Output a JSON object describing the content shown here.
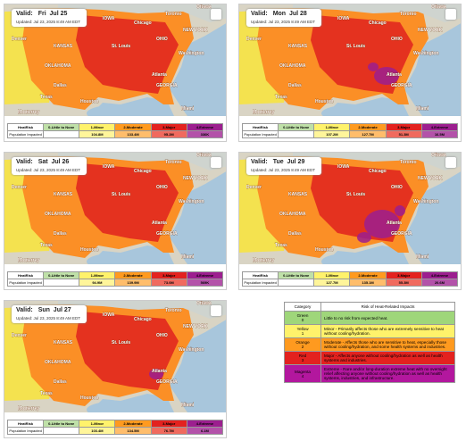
{
  "valid_label": "Valid:",
  "table_header": [
    "HeatRisk",
    "0-Little to None",
    "1-Minor",
    "2-Moderate",
    "3-Major",
    "4-Extreme"
  ],
  "population_label": "Population Impacted",
  "map_labels": [
    "NEBRASKA",
    "IOWA",
    "Chicago",
    "Denver",
    "KANSAS",
    "St. Louis",
    "OHIO",
    "Toronto",
    "Ottawa",
    "NEW YORK",
    "Washington",
    "OKLAHOMA",
    "Dallas",
    "Texas",
    "Atlanta",
    "GEORGIA",
    "Houston",
    "Miami",
    "Monterrey"
  ],
  "panels": [
    {
      "day": "Fri  Jul 25",
      "updated": "Updated: Jul 23, 2025 8:49 AM EDT",
      "population": [
        "104.8M",
        "133.4M",
        "95.2M",
        "336K"
      ]
    },
    {
      "day": "Mon  Jul 28",
      "updated": "Updated: Jul 23, 2025 8:49 AM EDT",
      "population": [
        "107.2M",
        "127.7M",
        "51.3M",
        "16.5M"
      ]
    },
    {
      "day": "Sat  Jul 26",
      "updated": "Updated: Jul 23, 2025 8:49 AM EDT",
      "population": [
        "94.9M",
        "139.9M",
        "73.0M",
        "569K"
      ]
    },
    {
      "day": "Tue  Jul 29",
      "updated": "Updated: Jul 23, 2025 8:49 AM EDT",
      "population": [
        "127.7M",
        "135.1M",
        "55.3M",
        "20.6M"
      ]
    },
    {
      "day": "Sun  Jul 27",
      "updated": "Updated: Jul 23, 2025 8:49 AM EDT",
      "population": [
        "103.4M",
        "134.5M",
        "76.7M",
        "6.1M"
      ]
    }
  ],
  "legend": {
    "header": [
      "Category",
      "Risk of Heat-Related Impacts"
    ],
    "rows": [
      {
        "name": "Green",
        "level": "0",
        "text": "Little to no risk from expected heat."
      },
      {
        "name": "Yellow",
        "level": "1",
        "text": "Minor - Primarily affects those who are extremely sensitive to heat without cooling/hydration."
      },
      {
        "name": "Orange",
        "level": "2",
        "text": "Moderate - Affects those who are sensitive to heat, especially those without cooling/hydration, and some health systems and industries."
      },
      {
        "name": "Red",
        "level": "3",
        "text": "Major - Affects anyone without cooling/hydration as well as health systems and industries."
      },
      {
        "name": "Magenta",
        "level": "4",
        "text": "Extreme - Rare and/or long-duration extreme heat with no overnight relief affecting anyone without cooling/hydration as well as health systems, industries, and infrastructure."
      }
    ]
  }
}
